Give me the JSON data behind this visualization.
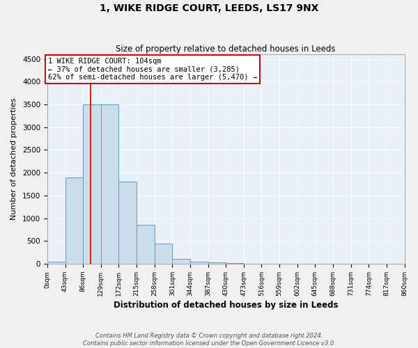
{
  "title": "1, WIKE RIDGE COURT, LEEDS, LS17 9NX",
  "subtitle": "Size of property relative to detached houses in Leeds",
  "xlabel": "Distribution of detached houses by size in Leeds",
  "ylabel": "Number of detached properties",
  "footnote1": "Contains HM Land Registry data © Crown copyright and database right 2024.",
  "footnote2": "Contains public sector information licensed under the Open Government Licence v3.0.",
  "bar_color": "#ccdce8",
  "bar_edge_color": "#6699bb",
  "background_color": "#e8f0f8",
  "bin_edges": [
    0,
    43,
    86,
    129,
    172,
    215,
    258,
    301,
    344,
    387,
    430,
    473,
    516,
    559,
    602,
    645,
    688,
    731,
    774,
    817,
    860
  ],
  "bar_heights": [
    50,
    1900,
    3500,
    3500,
    1800,
    850,
    450,
    110,
    50,
    30,
    10,
    5,
    3,
    2,
    1,
    1,
    0,
    0,
    0,
    0
  ],
  "property_size": 104,
  "property_label": "1 WIKE RIDGE COURT: 104sqm",
  "annotation_line1": "← 37% of detached houses are smaller (3,285)",
  "annotation_line2": "62% of semi-detached houses are larger (5,470) →",
  "red_line_color": "#cc0000",
  "annotation_box_color": "#ffffff",
  "annotation_box_edge": "#cc0000",
  "ylim": [
    0,
    4600
  ],
  "yticks": [
    0,
    500,
    1000,
    1500,
    2000,
    2500,
    3000,
    3500,
    4000,
    4500
  ],
  "fig_bg": "#f0f0f0"
}
